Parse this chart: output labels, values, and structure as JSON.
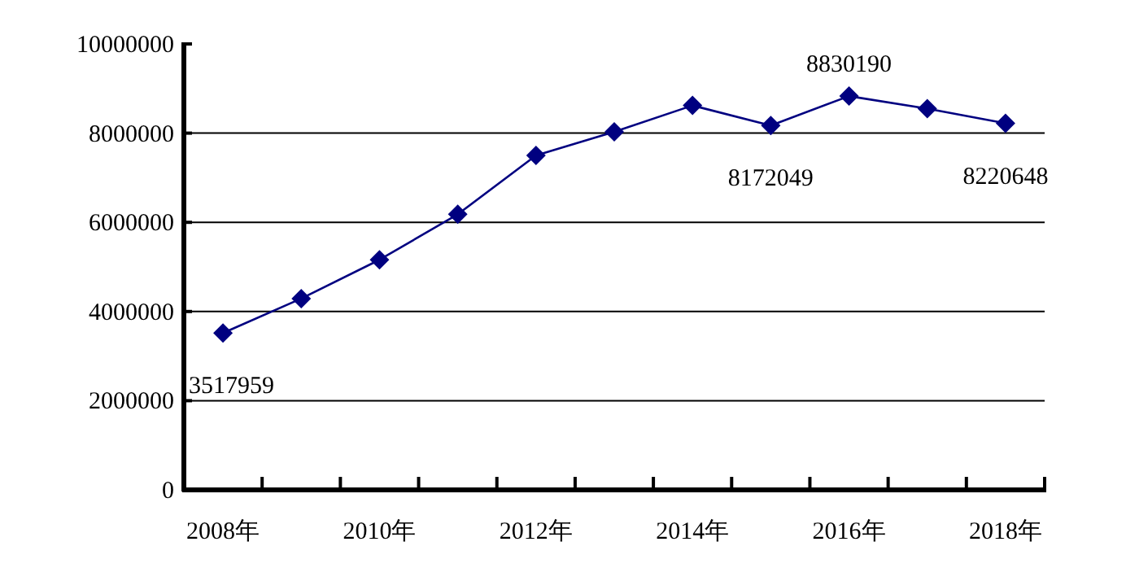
{
  "chart_data": {
    "type": "line",
    "categories": [
      "2008年",
      null,
      "2010年",
      null,
      "2012年",
      null,
      "2014年",
      null,
      "2016年",
      null,
      "2018年"
    ],
    "series": [
      {
        "color": "#000080",
        "values": [
          3517959,
          4290000,
          5160000,
          6180000,
          7500000,
          8030000,
          8620000,
          8172049,
          8830190,
          8550000,
          8220648
        ],
        "value_labels": [
          "3517959",
          null,
          null,
          null,
          null,
          null,
          null,
          "8172049",
          "8830190",
          null,
          "8220648"
        ]
      }
    ],
    "ylim": [
      0,
      10000000
    ],
    "yticks": [
      0,
      2000000,
      4000000,
      6000000,
      8000000,
      10000000
    ],
    "grid": "y",
    "marker": "diamond",
    "line_style": "solid"
  }
}
